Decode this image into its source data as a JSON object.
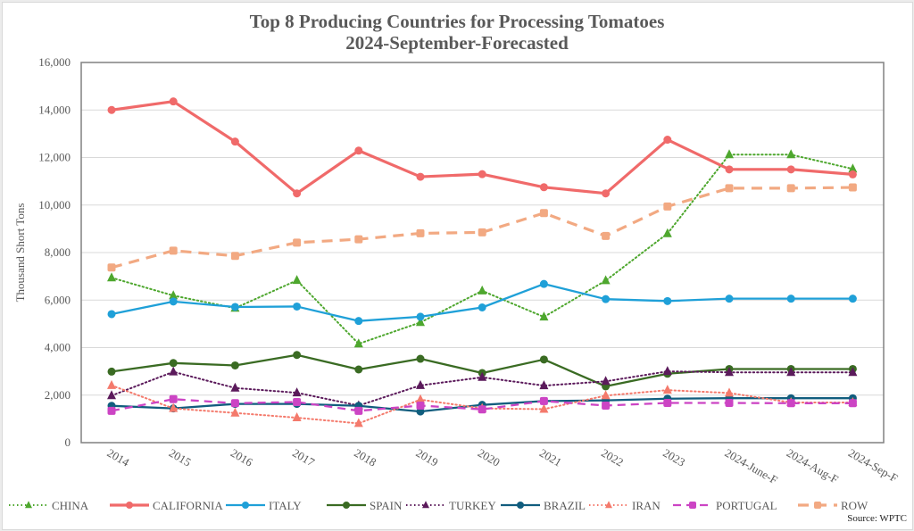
{
  "chart_data": {
    "type": "line",
    "title": "Top 8 Producing Countries for Processing Tomatoes",
    "subtitle": "2024-September-Forecasted",
    "xlabel": "",
    "ylabel": "Thousand Short Tons",
    "ylim": [
      0,
      16000
    ],
    "yticks": [
      0,
      2000,
      4000,
      6000,
      8000,
      10000,
      12000,
      14000,
      16000
    ],
    "ytick_labels": [
      "0",
      "2,000",
      "4,000",
      "6,000",
      "8,000",
      "10,000",
      "12,000",
      "14,000",
      "16,000"
    ],
    "grid": true,
    "legend_position": "bottom",
    "categories": [
      "2014",
      "2015",
      "2016",
      "2017",
      "2018",
      "2019",
      "2020",
      "2021",
      "2022",
      "2023",
      "2024-June-F",
      "2024-Aug-F",
      "2024-Sep-F"
    ],
    "series": [
      {
        "name": "CHINA",
        "color": "#4ea72e",
        "style": "dotted",
        "marker": "triangle",
        "values": [
          6940,
          6190,
          5660,
          6830,
          4160,
          5060,
          6390,
          5290,
          6820,
          8800,
          12120,
          12120,
          11520
        ]
      },
      {
        "name": "CALIFORNIA",
        "color": "#f06a6a",
        "style": "solid-thick",
        "marker": "circle",
        "values": [
          14000,
          14360,
          12670,
          10490,
          12290,
          11190,
          11300,
          10750,
          10490,
          12750,
          11500,
          11500,
          11290
        ]
      },
      {
        "name": "ITALY",
        "color": "#1fa0d8",
        "style": "solid",
        "marker": "circle",
        "values": [
          5410,
          5940,
          5710,
          5730,
          5120,
          5300,
          5690,
          6680,
          6040,
          5960,
          6060,
          6060,
          6060
        ]
      },
      {
        "name": "SPAIN",
        "color": "#3a6b23",
        "style": "solid",
        "marker": "circle",
        "values": [
          2990,
          3350,
          3250,
          3690,
          3080,
          3530,
          2930,
          3500,
          2370,
          2900,
          3100,
          3100,
          3100
        ]
      },
      {
        "name": "TURKEY",
        "color": "#5b1a5b",
        "style": "dotted",
        "marker": "triangle",
        "values": [
          1980,
          2980,
          2300,
          2100,
          1560,
          2410,
          2750,
          2400,
          2580,
          3000,
          2960,
          2960,
          2960
        ]
      },
      {
        "name": "BRAZIL",
        "color": "#115d7e",
        "style": "solid",
        "marker": "circle",
        "values": [
          1550,
          1440,
          1630,
          1630,
          1550,
          1310,
          1590,
          1750,
          1780,
          1850,
          1870,
          1870,
          1870
        ]
      },
      {
        "name": "IRAN",
        "color": "#f47a6c",
        "style": "dotted",
        "marker": "triangle",
        "values": [
          2410,
          1440,
          1250,
          1050,
          810,
          1810,
          1440,
          1410,
          1980,
          2210,
          2090,
          1690,
          1690
        ]
      },
      {
        "name": "PORTUGAL",
        "color": "#cc44c4",
        "style": "dashed",
        "marker": "square",
        "values": [
          1340,
          1830,
          1660,
          1710,
          1340,
          1560,
          1400,
          1750,
          1560,
          1670,
          1670,
          1660,
          1660
        ]
      },
      {
        "name": "ROW",
        "color": "#f2a982",
        "style": "dashed-thick",
        "marker": "square",
        "values": [
          7370,
          8080,
          7860,
          8420,
          8560,
          8810,
          8850,
          9660,
          8700,
          9940,
          10710,
          10710,
          10740
        ]
      }
    ],
    "source": "Source: WPTC"
  }
}
